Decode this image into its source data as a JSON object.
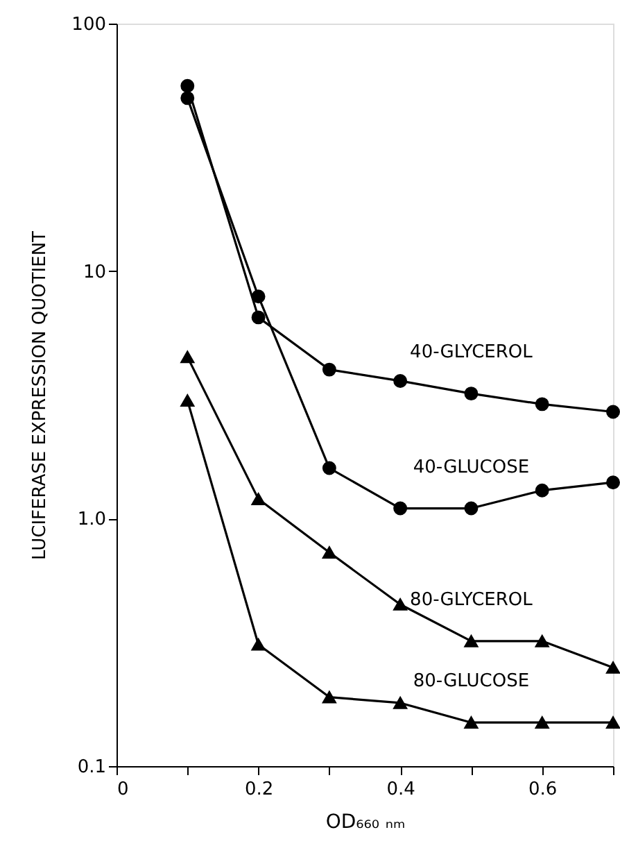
{
  "chart_data": {
    "type": "line",
    "xlabel": "OD₆₆₀ ₙₘ",
    "ylabel": "LUCIFERASE EXPRESSION QUOTIENT",
    "x": [
      0.1,
      0.2,
      0.3,
      0.4,
      0.5,
      0.6,
      0.7
    ],
    "series": [
      {
        "name": "40-GLYCEROL",
        "color": "#000000",
        "marker": "circle",
        "values": [
          56,
          6.5,
          4.0,
          3.6,
          3.2,
          2.9,
          2.7
        ]
      },
      {
        "name": "40-GLUCOSE",
        "color": "#000000",
        "marker": "circle",
        "values": [
          50,
          7.9,
          1.6,
          1.1,
          1.1,
          1.3,
          1.4
        ]
      },
      {
        "name": "80-GLYCEROL",
        "color": "#000000",
        "marker": "triangle",
        "values": [
          4.5,
          1.2,
          0.73,
          0.45,
          0.32,
          0.32,
          0.25
        ]
      },
      {
        "name": "80-GLUCOSE",
        "color": "#000000",
        "marker": "triangle",
        "values": [
          3.0,
          0.31,
          0.19,
          0.18,
          0.15,
          0.15,
          0.15
        ]
      }
    ],
    "xlim": [
      0,
      0.7
    ],
    "xticks": [
      0,
      {
        "value": 0.1,
        "label": null
      },
      0.2,
      {
        "value": 0.3,
        "label": null
      },
      0.4,
      {
        "value": 0.5,
        "label": null
      },
      0.6,
      {
        "value": 0.7,
        "label": null
      }
    ],
    "ylim": [
      0.1,
      100
    ],
    "yticks": [
      0.1,
      {
        "value": 1,
        "label": "1.0"
      },
      10,
      100
    ],
    "log": "y",
    "grid": false,
    "legend": false,
    "line_style": "solid"
  }
}
